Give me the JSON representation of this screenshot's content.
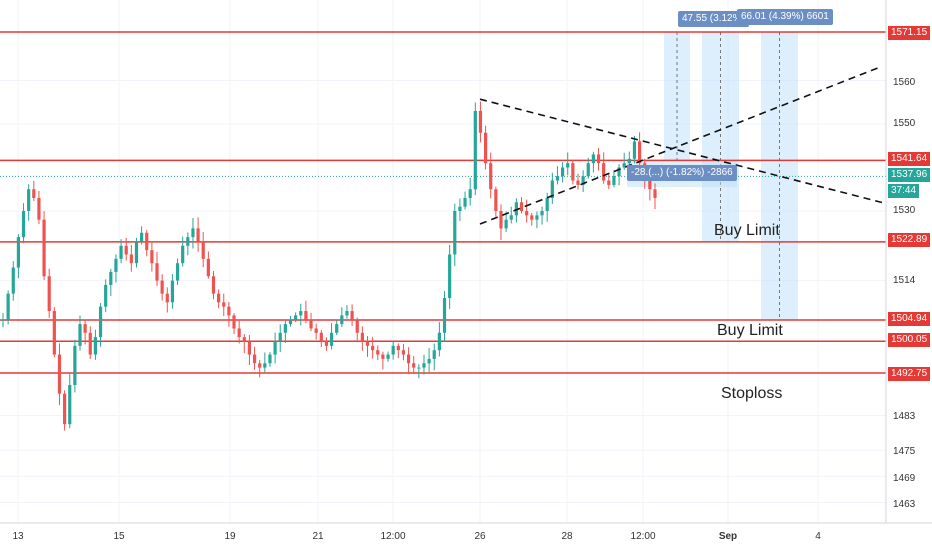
{
  "chart_data": {
    "type": "candlestick",
    "y_axis": {
      "ticks": [
        1560.0,
        1550.0,
        1530.0,
        1514.0,
        1483.0,
        1475.0,
        1469.0,
        1463.0
      ],
      "ylim": [
        1458.4,
        1577.8
      ]
    },
    "x_axis": {
      "ticks": [
        "13",
        "15",
        "19",
        "21",
        "12:00",
        "26",
        "28",
        "12:00",
        "Sep",
        "4"
      ]
    },
    "horizontal_levels": [
      {
        "price": "1571.15",
        "value": 1571.15,
        "color": "#e53935"
      },
      {
        "price": "1541.64",
        "value": 1541.64,
        "color": "#e53935"
      },
      {
        "price": "1522.89",
        "value": 1522.89,
        "color": "#e53935"
      },
      {
        "price": "1504.94",
        "value": 1504.94,
        "color": "#e53935"
      },
      {
        "price": "1500.05",
        "value": 1500.05,
        "color": "#e53935"
      },
      {
        "price": "1492.75",
        "value": 1492.75,
        "color": "#e53935"
      }
    ],
    "current_price": {
      "price": "1537.96",
      "value": 1537.96,
      "countdown": "37:44",
      "color": "#26a69a"
    },
    "annotations": [
      "Buy Limit",
      "Buy Limit",
      "Stoploss"
    ],
    "measurements": [
      {
        "label": "47.55 (3.12%)"
      },
      {
        "label": "66.01 (4.39%) 6601"
      },
      {
        "label": "-28.(...) (-1.82%) -2866"
      }
    ],
    "trendlines": [
      {
        "points": [
          [
            26,
            1555.7
          ],
          [
            32.5,
            1539.0
          ]
        ]
      },
      {
        "points": [
          [
            26,
            1527.0
          ],
          [
            32.5,
            1552.5
          ]
        ]
      }
    ],
    "candles": {
      "start": 1505,
      "path": [
        1505,
        1511,
        1517,
        1524,
        1530,
        1535,
        1533,
        1528,
        1515,
        1507,
        1497,
        1488,
        1481,
        1490,
        1499,
        1504,
        1502,
        1497,
        1501,
        1508,
        1513,
        1516,
        1519,
        1522,
        1520,
        1518,
        1523,
        1525,
        1521,
        1518,
        1514,
        1511,
        1509,
        1514,
        1518,
        1522,
        1524,
        1526,
        1523,
        1519,
        1515,
        1511,
        1509,
        1508,
        1506,
        1503,
        1501,
        1500,
        1497,
        1495,
        1494,
        1495,
        1497,
        1500,
        1502,
        1504,
        1505,
        1506,
        1507,
        1505,
        1503,
        1502,
        1500,
        1499,
        1502,
        1504,
        1506,
        1507,
        1505,
        1502,
        1500,
        1499,
        1498,
        1497,
        1496,
        1497,
        1499,
        1498,
        1497,
        1495,
        1494,
        1494,
        1495,
        1496,
        1498,
        1502,
        1510,
        1520,
        1530,
        1531,
        1533,
        1535,
        1553,
        1548,
        1541,
        1535,
        1530,
        1526,
        1528,
        1529,
        1532,
        1530,
        1529,
        1528,
        1529,
        1530,
        1533,
        1537,
        1538,
        1540,
        1541,
        1537,
        1536,
        1538,
        1541,
        1543,
        1541,
        1537,
        1536,
        1538,
        1540,
        1541,
        1542,
        1546,
        1541,
        1537,
        1535,
        1533
      ]
    },
    "colors": {
      "up": "#26a69a",
      "down": "#ef5350",
      "level": "#e53935",
      "measure_fill": "#bbdefb",
      "measure_label": "#6b8fc5",
      "grid": "#f0f3fa"
    }
  }
}
